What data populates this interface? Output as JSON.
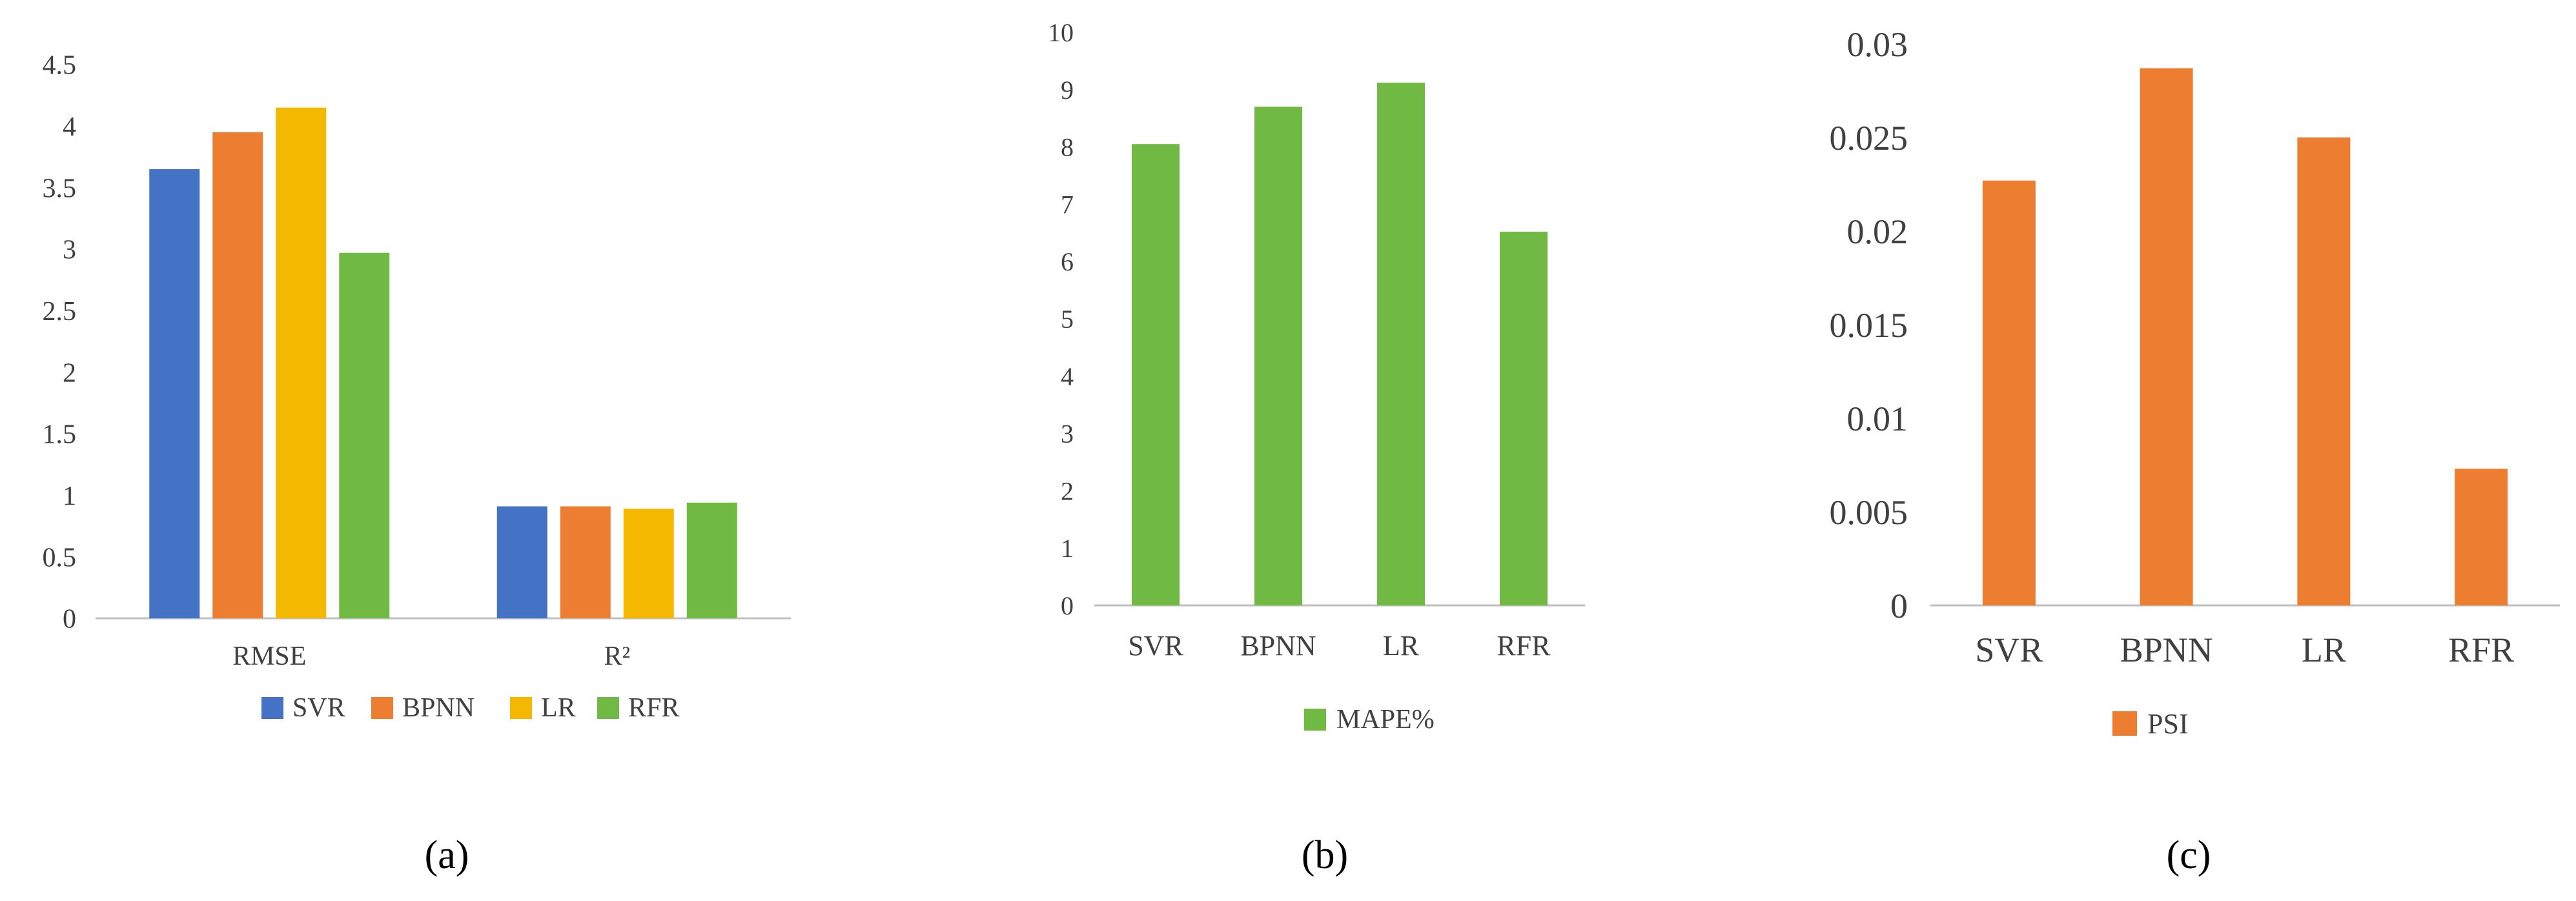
{
  "colors": {
    "SVR": "#4472C4",
    "BPNN": "#ED7D31",
    "LR": "#F5B800",
    "RFR": "#70B943",
    "axis": "#BFBFBF",
    "text": "#404040"
  },
  "chart_data": [
    {
      "id": "a",
      "type": "bar",
      "caption": "(a)",
      "categories": [
        "RMSE",
        "R²"
      ],
      "series": [
        {
          "name": "SVR",
          "values": [
            3.65,
            0.91
          ]
        },
        {
          "name": "BPNN",
          "values": [
            3.95,
            0.91
          ]
        },
        {
          "name": "LR",
          "values": [
            4.15,
            0.89
          ]
        },
        {
          "name": "RFR",
          "values": [
            2.97,
            0.94
          ]
        }
      ],
      "yticks": [
        "0",
        "0.5",
        "1",
        "1.5",
        "2",
        "2.5",
        "3",
        "3.5",
        "4",
        "4.5"
      ],
      "ylim": [
        0,
        4.5
      ],
      "legend": "bottom",
      "grid": false
    },
    {
      "id": "b",
      "type": "bar",
      "caption": "(b)",
      "categories": [
        "SVR",
        "BPNN",
        "LR",
        "RFR"
      ],
      "series": [
        {
          "name": "MAPE%",
          "values": [
            8.05,
            8.7,
            9.12,
            6.52
          ]
        }
      ],
      "yticks": [
        "0",
        "1",
        "2",
        "3",
        "4",
        "5",
        "6",
        "7",
        "8",
        "9",
        "10"
      ],
      "ylim": [
        0,
        10
      ],
      "legend": "bottom",
      "grid": false
    },
    {
      "id": "c",
      "type": "bar",
      "caption": "(c)",
      "categories": [
        "SVR",
        "BPNN",
        "LR",
        "RFR"
      ],
      "series": [
        {
          "name": "PSI",
          "values": [
            0.0227,
            0.0287,
            0.025,
            0.0073
          ]
        }
      ],
      "yticks": [
        "0",
        "0.005",
        "0.01",
        "0.015",
        "0.02",
        "0.025",
        "0.03"
      ],
      "ylim": [
        0,
        0.03
      ],
      "legend": "bottom",
      "grid": false
    }
  ]
}
